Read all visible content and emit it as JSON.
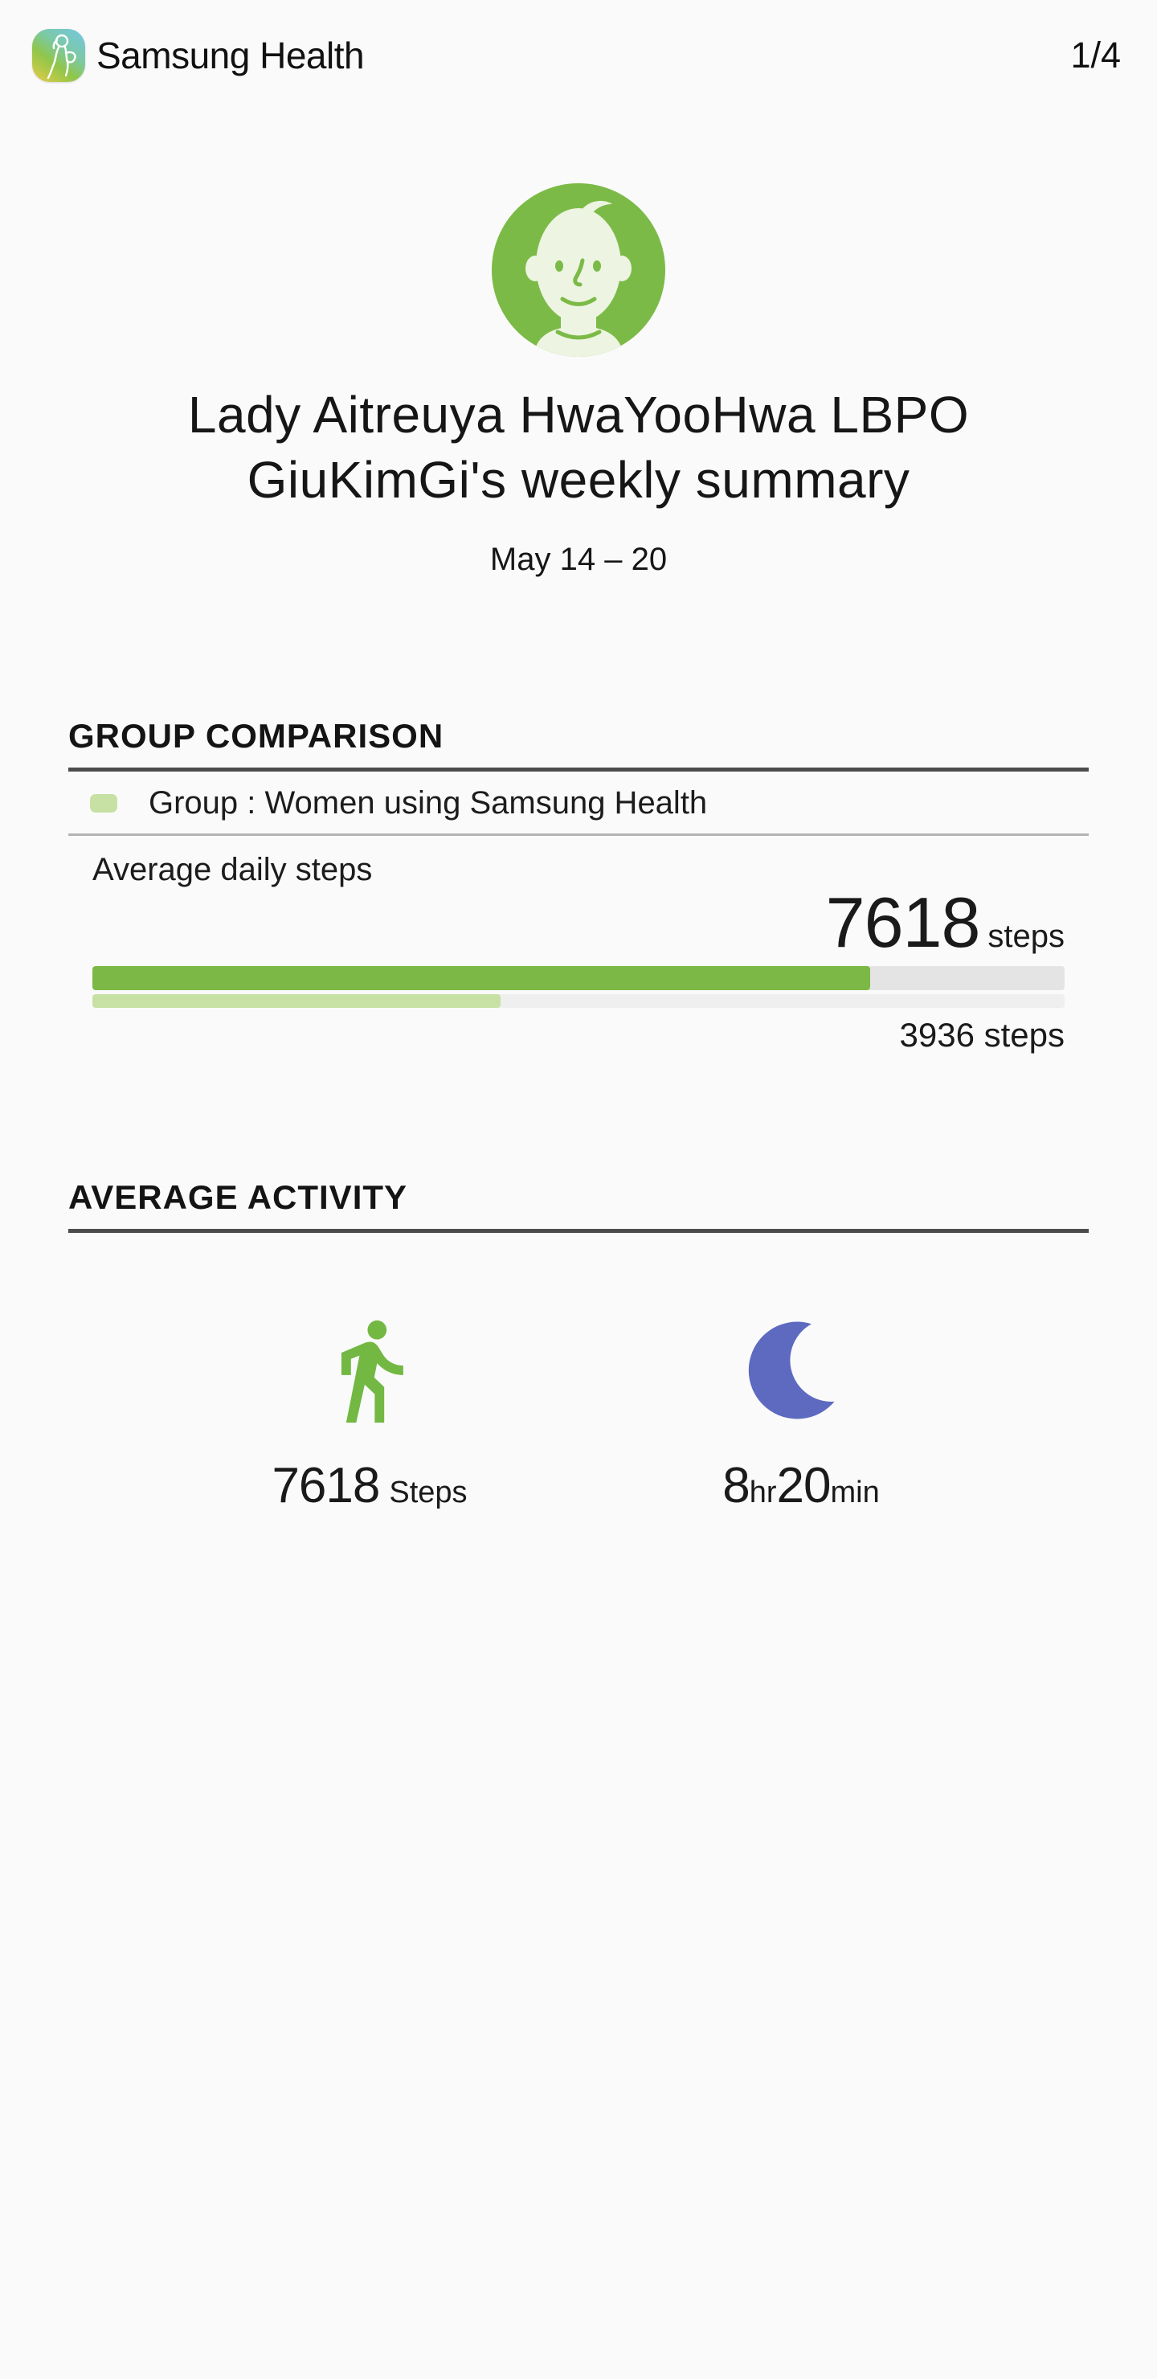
{
  "header": {
    "app_name": "Samsung Health",
    "page_indicator": "1/4"
  },
  "profile": {
    "title_line1": "Lady Aitreuya HwaYooHwa LBPO",
    "title_line2": "GiuKimGi's weekly summary",
    "date_range": "May 14 – 20"
  },
  "group_comparison": {
    "section_title": "GROUP COMPARISON",
    "legend_label": "Group : Women using Samsung Health",
    "metric_label": "Average daily steps",
    "user_value": "7618",
    "user_unit": "steps",
    "group_value_label": "3936 steps",
    "user_bar_width": "80%",
    "group_bar_width": "42%"
  },
  "average_activity": {
    "section_title": "AVERAGE ACTIVITY",
    "steps_value": "7618",
    "steps_unit": "Steps",
    "sleep_hours": "8",
    "sleep_hours_unit": "hr",
    "sleep_minutes": "20",
    "sleep_minutes_unit": "min"
  },
  "icons": {
    "app": "samsung-health-logo",
    "profile": "generated-avatar-face",
    "steps": "running-man",
    "sleep": "crescent-moon"
  },
  "colors": {
    "accent_green": "#7cb845",
    "light_green": "#c6e1a3",
    "sleep_purple": "#5d6ac0",
    "bar_track": "#e4e4e4",
    "bar_track_light": "#efefef",
    "avatar_face": "#edf4e1",
    "background": "#fafafa"
  }
}
